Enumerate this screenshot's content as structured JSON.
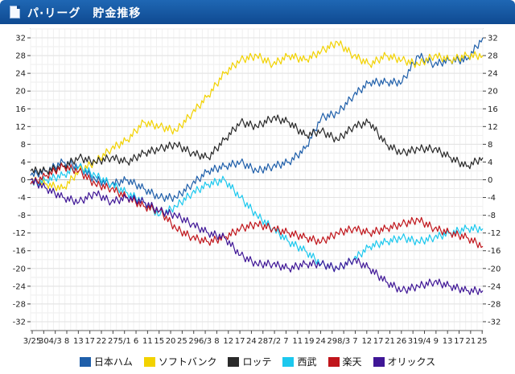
{
  "header": {
    "title": "パ·リーグ　貯金推移",
    "icon": "document-icon"
  },
  "chart_data": {
    "type": "line",
    "title": "パ·リーグ　貯金推移",
    "ylim": [
      -34,
      34
    ],
    "y_ticks": [
      32,
      28,
      24,
      20,
      16,
      12,
      8,
      4,
      0,
      -4,
      -8,
      -12,
      -16,
      -20,
      -24,
      -28,
      -32
    ],
    "x_tick_labels": [
      "3/25",
      "30",
      "4/3",
      "8",
      "13",
      "17",
      "22",
      "27",
      "5/1",
      "6",
      "11",
      "15",
      "20",
      "25",
      "29",
      "6/3",
      "8",
      "12",
      "17",
      "24",
      "28",
      "7/2",
      "7",
      "11",
      "19",
      "24",
      "29",
      "8/3",
      "7",
      "12",
      "17",
      "21",
      "26",
      "31",
      "9/4",
      "9",
      "13",
      "17",
      "21",
      "25"
    ],
    "grid": true,
    "legend_position": "bottom",
    "series": [
      {
        "name": "日本ハム",
        "color": "#1f5faa",
        "x": [
          0,
          5,
          10,
          15,
          20,
          25,
          30,
          35,
          40,
          45,
          50,
          55,
          60,
          65,
          70,
          75,
          80,
          85,
          90,
          95,
          100,
          105,
          110,
          115,
          120,
          125,
          130,
          135,
          140
        ],
        "values": [
          1,
          2,
          4,
          3,
          0,
          -1,
          0,
          -2,
          -4,
          -4,
          -1,
          2,
          3,
          4,
          2,
          3,
          4,
          7,
          14,
          15,
          19,
          22,
          22,
          22,
          28,
          26,
          27,
          27,
          32
        ]
      },
      {
        "name": "ソフトバンク",
        "color": "#f2d200",
        "x": [
          0,
          5,
          10,
          15,
          20,
          25,
          30,
          35,
          40,
          45,
          50,
          55,
          60,
          65,
          70,
          75,
          80,
          85,
          90,
          95,
          100,
          105,
          110,
          115,
          120,
          125,
          130,
          135,
          140
        ],
        "values": [
          0,
          -1,
          -2,
          2,
          4,
          7,
          9,
          13,
          12,
          11,
          15,
          19,
          24,
          27,
          28,
          26,
          28,
          27,
          29,
          31,
          28,
          26,
          28,
          27,
          26,
          28,
          27,
          28,
          28
        ]
      },
      {
        "name": "ロッテ",
        "color": "#2a2a2a",
        "x": [
          0,
          5,
          10,
          15,
          20,
          25,
          30,
          35,
          40,
          45,
          50,
          55,
          60,
          65,
          70,
          75,
          80,
          85,
          90,
          95,
          100,
          105,
          110,
          115,
          120,
          125,
          130,
          135,
          140
        ],
        "values": [
          2,
          2,
          3,
          5,
          4,
          5,
          4,
          6,
          7,
          8,
          6,
          5,
          9,
          13,
          12,
          14,
          13,
          10,
          11,
          9,
          12,
          13,
          8,
          6,
          7,
          7,
          5,
          3,
          5
        ]
      },
      {
        "name": "西武",
        "color": "#1cc8ee",
        "x": [
          0,
          5,
          10,
          15,
          20,
          25,
          30,
          35,
          40,
          45,
          50,
          55,
          60,
          65,
          70,
          75,
          80,
          85,
          90,
          95,
          100,
          105,
          110,
          115,
          120,
          125,
          130,
          135,
          140
        ],
        "values": [
          -1,
          0,
          1,
          3,
          1,
          -1,
          -3,
          -5,
          -8,
          -6,
          -3,
          -1,
          0,
          -4,
          -8,
          -11,
          -14,
          -16,
          -19,
          -20,
          -18,
          -15,
          -14,
          -13,
          -14,
          -13,
          -12,
          -11,
          -11
        ]
      },
      {
        "name": "楽天",
        "color": "#c0151b",
        "x": [
          0,
          5,
          10,
          15,
          20,
          25,
          30,
          35,
          40,
          45,
          50,
          55,
          60,
          65,
          70,
          75,
          80,
          85,
          90,
          95,
          100,
          105,
          110,
          115,
          120,
          125,
          130,
          135,
          140
        ],
        "values": [
          -1,
          1,
          3,
          2,
          -1,
          -2,
          -4,
          -6,
          -7,
          -11,
          -13,
          -14,
          -13,
          -11,
          -10,
          -11,
          -12,
          -13,
          -14,
          -12,
          -11,
          -12,
          -11,
          -10,
          -9,
          -11,
          -12,
          -13,
          -15
        ]
      },
      {
        "name": "オリックス",
        "color": "#3f1696",
        "x": [
          0,
          5,
          10,
          15,
          20,
          25,
          30,
          35,
          40,
          45,
          50,
          55,
          60,
          65,
          70,
          75,
          80,
          85,
          90,
          95,
          100,
          105,
          110,
          115,
          120,
          125,
          130,
          135,
          140
        ],
        "values": [
          0,
          -2,
          -4,
          -5,
          -3,
          -5,
          -4,
          -5,
          -7,
          -8,
          -10,
          -12,
          -13,
          -17,
          -19,
          -19,
          -20,
          -19,
          -19,
          -20,
          -18,
          -20,
          -23,
          -25,
          -24,
          -23,
          -24,
          -25,
          -25
        ]
      }
    ]
  }
}
